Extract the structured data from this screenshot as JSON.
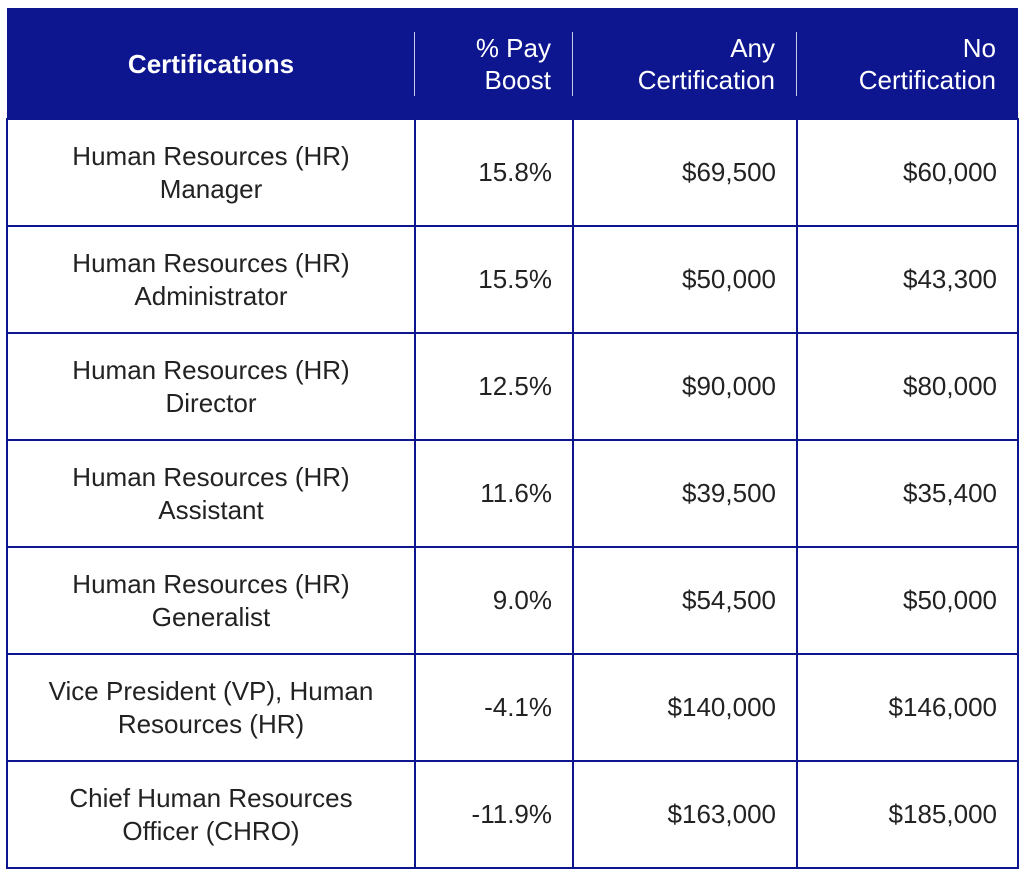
{
  "table": {
    "headers": [
      {
        "line1": "Certifications",
        "line2": ""
      },
      {
        "line1": "% Pay",
        "line2": "Boost"
      },
      {
        "line1": "Any",
        "line2": "Certification"
      },
      {
        "line1": "No",
        "line2": "Certification"
      }
    ],
    "rows": [
      {
        "name1": "Human Resources (HR)",
        "name2": "Manager",
        "boost": "15.8%",
        "any": "$69,500",
        "none": "$60,000"
      },
      {
        "name1": "Human Resources (HR)",
        "name2": "Administrator",
        "boost": "15.5%",
        "any": "$50,000",
        "none": "$43,300"
      },
      {
        "name1": "Human Resources (HR)",
        "name2": "Director",
        "boost": "12.5%",
        "any": "$90,000",
        "none": "$80,000"
      },
      {
        "name1": "Human Resources (HR)",
        "name2": "Assistant",
        "boost": "11.6%",
        "any": "$39,500",
        "none": "$35,400"
      },
      {
        "name1": "Human Resources (HR)",
        "name2": "Generalist",
        "boost": "9.0%",
        "any": "$54,500",
        "none": "$50,000"
      },
      {
        "name1": "Vice President (VP), Human",
        "name2": "Resources (HR)",
        "boost": "-4.1%",
        "any": "$140,000",
        "none": "$146,000"
      },
      {
        "name1": "Chief Human Resources",
        "name2": "Officer (CHRO)",
        "boost": "-11.9%",
        "any": "$163,000",
        "none": "$185,000"
      }
    ]
  },
  "colors": {
    "header_bg": "#0d168f",
    "header_text": "#ffffff",
    "border": "#0d168f"
  }
}
